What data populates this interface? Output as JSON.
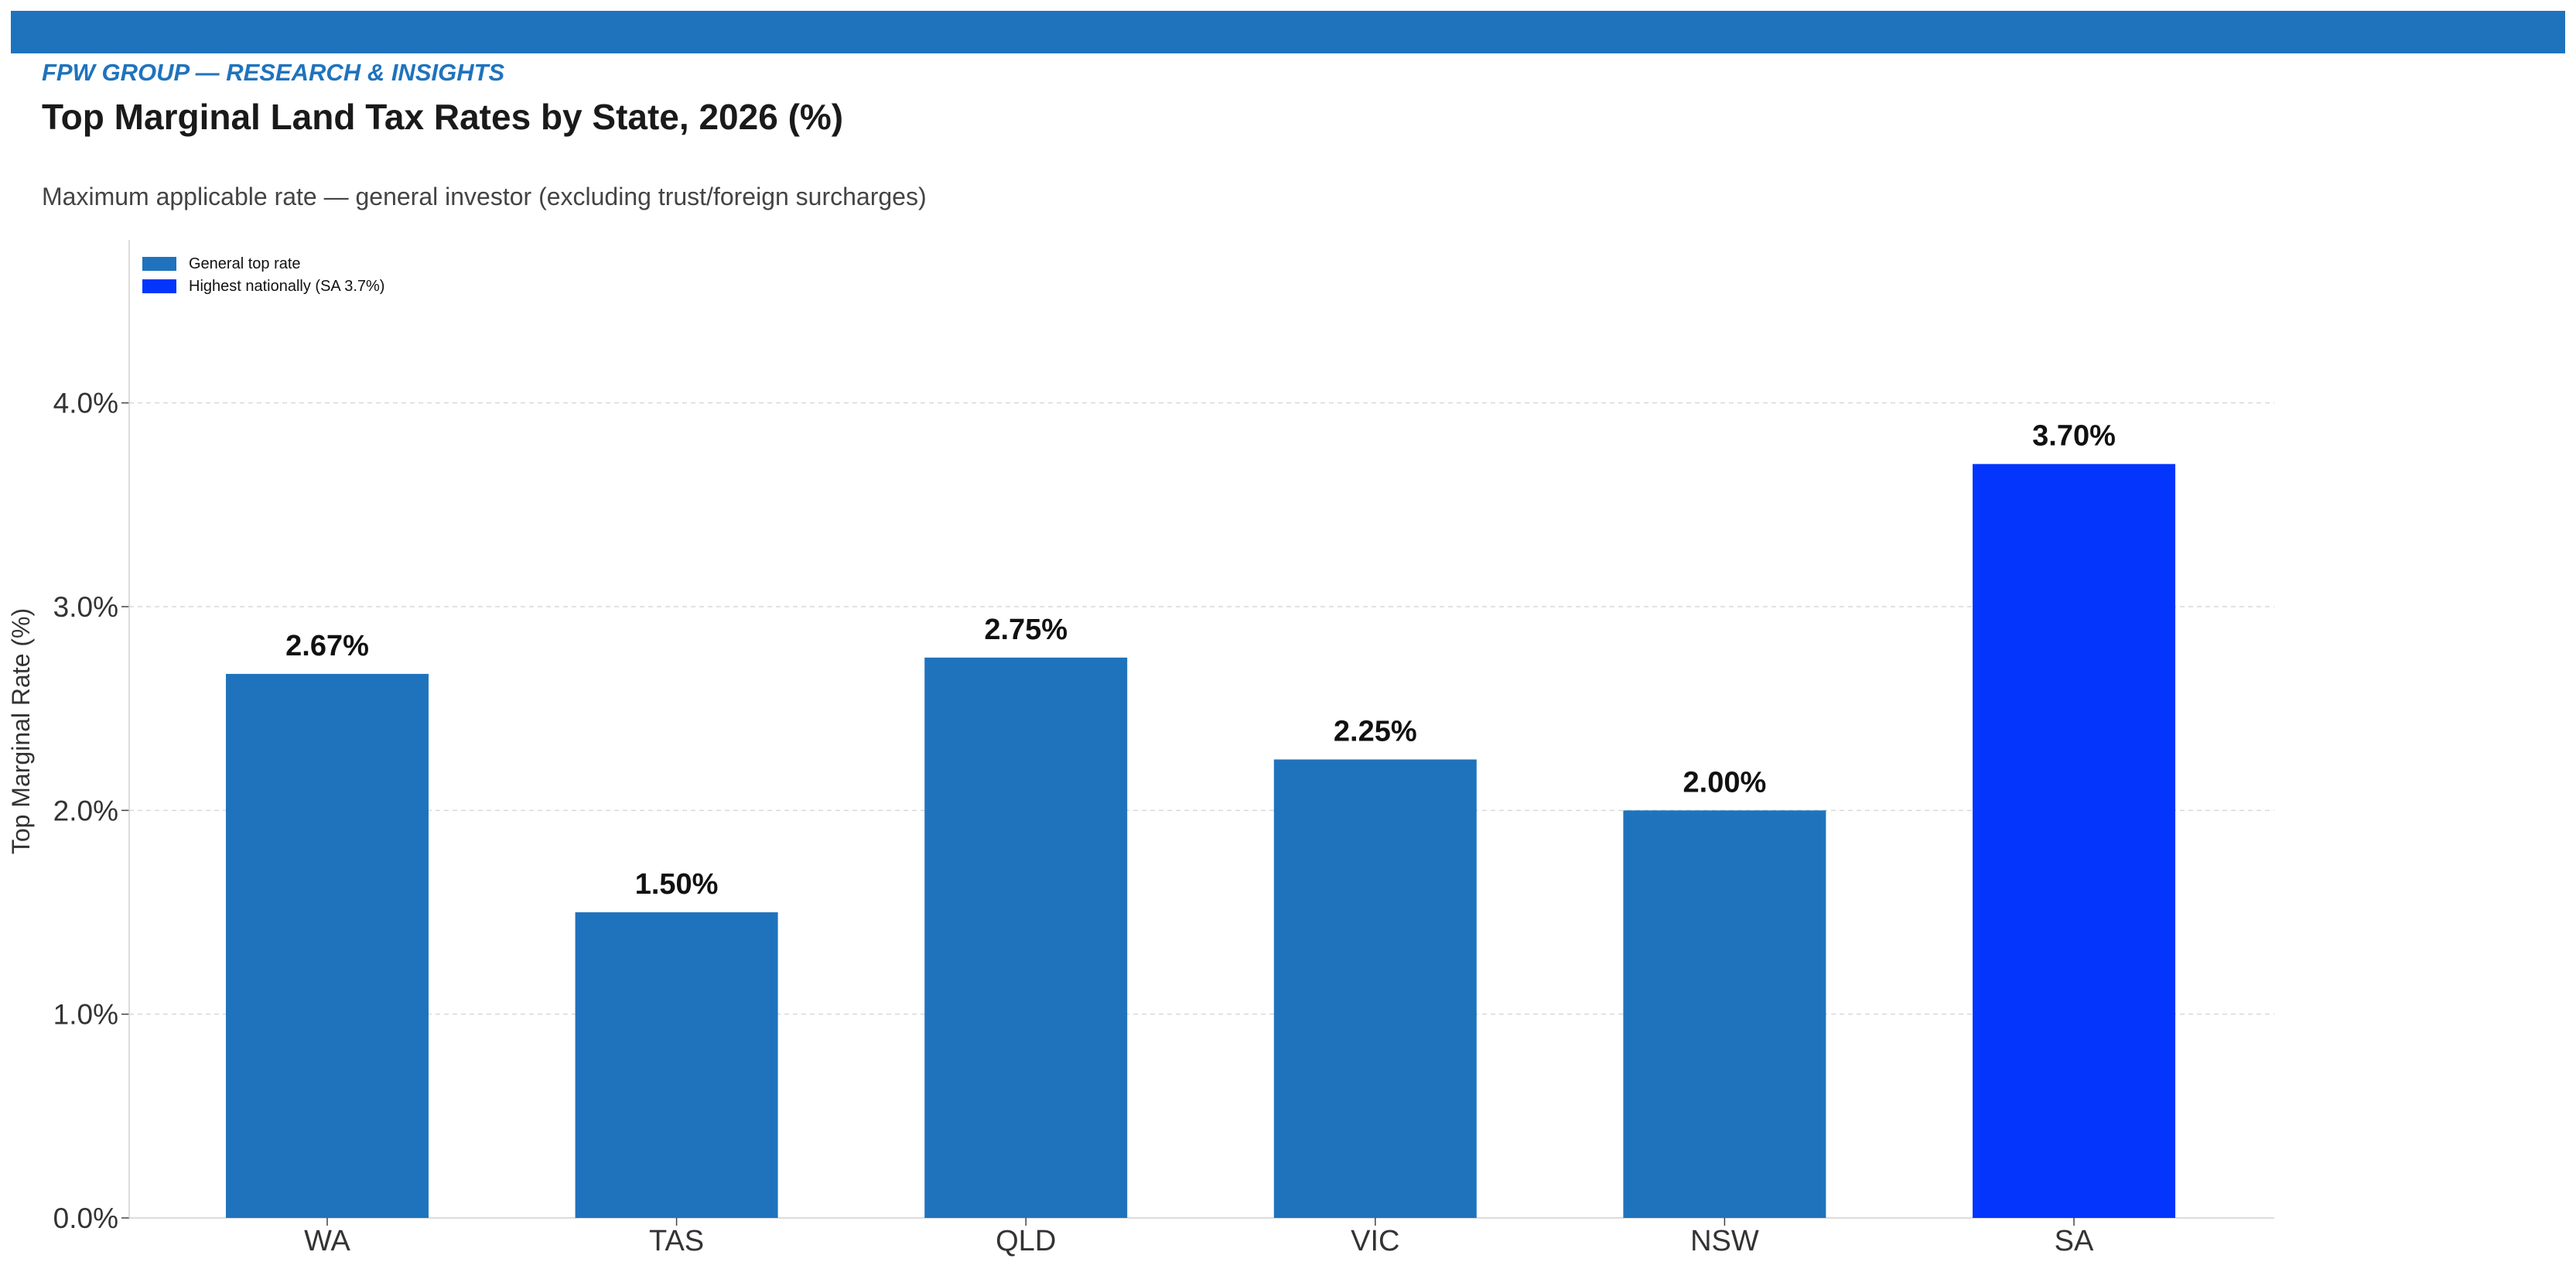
{
  "header": {
    "brand": "FPW GROUP — RESEARCH & INSIGHTS",
    "title": "Top Marginal Land Tax Rates by State, 2026 (%)",
    "subtitle": "Maximum applicable rate — general investor (excluding trust/foreign surcharges)"
  },
  "colors": {
    "brand": "#1f73bd",
    "general": "#1f73bd",
    "highlight": "#0335fc"
  },
  "chart_data": {
    "type": "bar",
    "title": "Top Marginal Land Tax Rates by State, 2026 (%)",
    "subtitle": "Maximum applicable rate — general investor (excluding trust/foreign surcharges)",
    "xlabel": "",
    "ylabel": "Top Marginal Rate (%)",
    "categories": [
      "WA",
      "TAS",
      "QLD",
      "VIC",
      "NSW",
      "SA"
    ],
    "values": [
      2.67,
      1.5,
      2.75,
      2.25,
      2.0,
      3.7
    ],
    "data_labels": [
      "2.67%",
      "1.50%",
      "2.75%",
      "2.25%",
      "2.00%",
      "3.70%"
    ],
    "highlight_index": 5,
    "ylim": [
      0,
      4.8
    ],
    "yticks": [
      0,
      1,
      2,
      3,
      4
    ],
    "ytick_labels": [
      "0.0%",
      "1.0%",
      "2.0%",
      "3.0%",
      "4.0%"
    ],
    "grid": "y-dashed",
    "legend": {
      "placement": "top-left",
      "entries": [
        {
          "label": "General top rate",
          "color": "#1f73bd"
        },
        {
          "label": "Highest nationally (SA 3.7%)",
          "color": "#0335fc"
        }
      ]
    }
  }
}
